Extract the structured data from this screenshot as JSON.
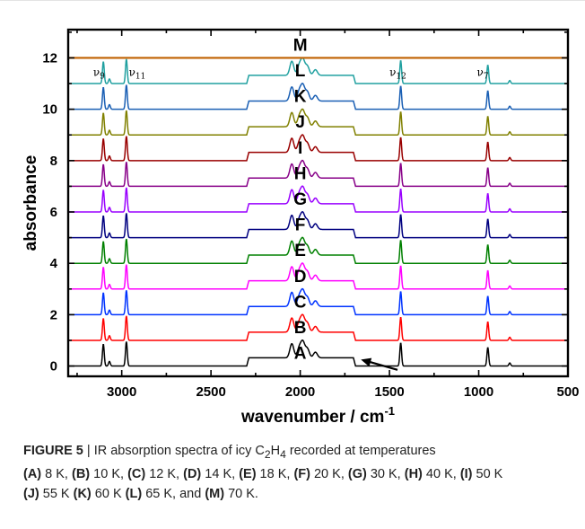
{
  "chart_data": {
    "type": "line",
    "xlabel": "wavenumber / cm",
    "xlabel_sup": "-1",
    "ylabel": "absorbance",
    "xlim": [
      3300,
      500
    ],
    "ylim": [
      -0.4,
      13.1
    ],
    "x_ticks": [
      3000,
      2500,
      2000,
      1500,
      1000,
      500
    ],
    "y_ticks": [
      0,
      2,
      4,
      6,
      8,
      10,
      12
    ],
    "grid": false,
    "series": [
      {
        "name": "A",
        "offset": 0,
        "color": "#000000"
      },
      {
        "name": "B",
        "offset": 1,
        "color": "#ff0000"
      },
      {
        "name": "C",
        "offset": 2,
        "color": "#0033ff"
      },
      {
        "name": "D",
        "offset": 3,
        "color": "#ff00ff"
      },
      {
        "name": "E",
        "offset": 4,
        "color": "#008000"
      },
      {
        "name": "F",
        "offset": 5,
        "color": "#000080"
      },
      {
        "name": "G",
        "offset": 6,
        "color": "#9900ff"
      },
      {
        "name": "H",
        "offset": 7,
        "color": "#880088"
      },
      {
        "name": "I",
        "offset": 8,
        "color": "#990000"
      },
      {
        "name": "J",
        "offset": 9,
        "color": "#808000"
      },
      {
        "name": "K",
        "offset": 10,
        "color": "#1a5fb4"
      },
      {
        "name": "L",
        "offset": 11,
        "color": "#20a0a0"
      },
      {
        "name": "M",
        "offset": 12,
        "color": "#c06000"
      }
    ],
    "peaks": [
      {
        "x": 3103,
        "height": 0.85
      },
      {
        "x": 3069,
        "height": 0.18
      },
      {
        "x": 2974,
        "height": 0.95
      },
      {
        "x": 1437,
        "height": 0.9
      },
      {
        "x": 949,
        "height": 0.72
      },
      {
        "x": 826,
        "height": 0.12
      }
    ],
    "combination_band": {
      "x_range": [
        2300,
        1690
      ],
      "peaks": [
        {
          "x": 2047,
          "height": 0.55
        },
        {
          "x": 1985,
          "height": 0.58
        },
        {
          "x": 2005,
          "height": 0.38
        },
        {
          "x": 1960,
          "height": 0.35
        },
        {
          "x": 1915,
          "height": 0.22
        }
      ],
      "baseline_lift": 0.32
    },
    "mode_labels": [
      {
        "text": "ν",
        "sub": "9",
        "x": 3160,
        "y": 11.3
      },
      {
        "text": "ν",
        "sub": "11",
        "x": 2960,
        "y": 11.3
      },
      {
        "text": "ν",
        "sub": "12",
        "x": 1500,
        "y": 11.3
      },
      {
        "text": "ν",
        "sub": "7",
        "x": 1010,
        "y": 11.3
      }
    ],
    "annotation": {
      "type": "arrow",
      "from": [
        1455,
        -0.15
      ],
      "to": [
        1660,
        0.25
      ]
    }
  },
  "caption": {
    "figure_label": "FIGURE 5",
    "separator": " | ",
    "text_1": "IR absorption spectra of icy C",
    "sub_1": "2",
    "text_2": "H",
    "sub_2": "4",
    "text_3": " recorded at temperatures",
    "temps": [
      {
        "label": "(A)",
        "value": " 8 K,"
      },
      {
        "label": "(B)",
        "value": " 10 K,"
      },
      {
        "label": "(C)",
        "value": " 12 K,"
      },
      {
        "label": "(D)",
        "value": " 14 K,"
      },
      {
        "label": "(E)",
        "value": " 18 K,"
      },
      {
        "label": "(F)",
        "value": " 20 K,"
      },
      {
        "label": "(G)",
        "value": " 30 K,"
      },
      {
        "label": "(H)",
        "value": " 40 K,"
      },
      {
        "label": "(I)",
        "value": " 50 K"
      },
      {
        "label": "(J)",
        "value": " 55 K"
      },
      {
        "label": "(K)",
        "value": " 60 K"
      },
      {
        "label": "(L)",
        "value": " 65 K, and"
      },
      {
        "label": "(M)",
        "value": " 70 K."
      }
    ]
  }
}
